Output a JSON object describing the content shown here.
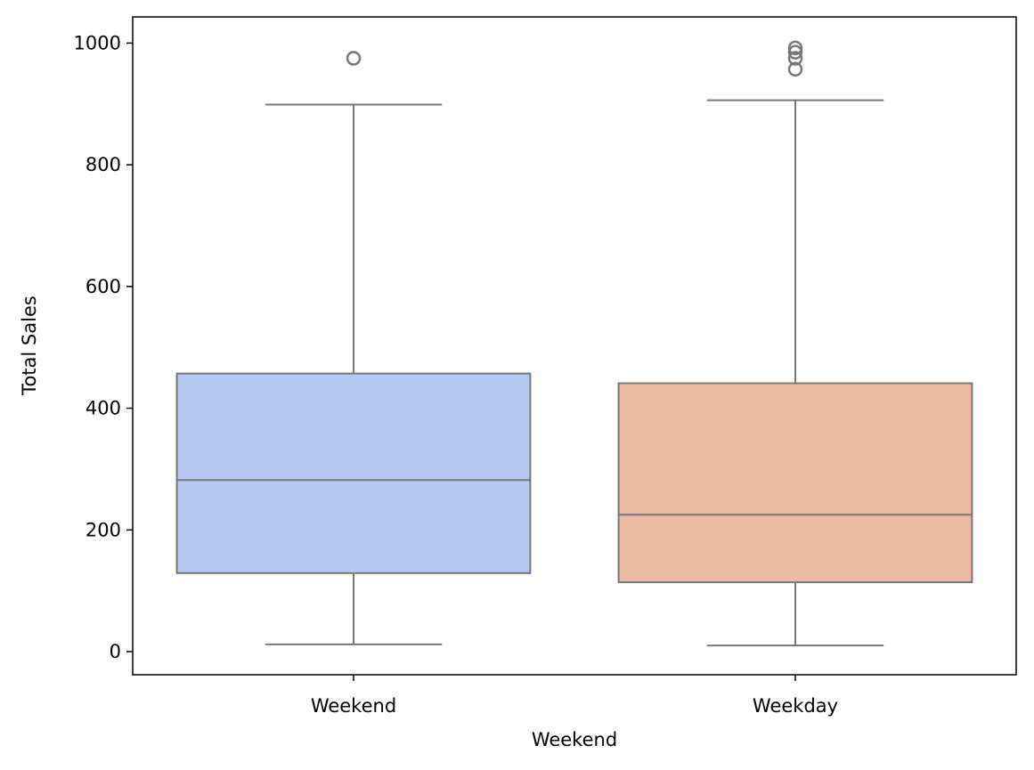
{
  "chart_data": {
    "type": "box",
    "title": "",
    "xlabel": "Weekend",
    "ylabel": "Total Sales",
    "ylim": [
      -38,
      1043
    ],
    "y_ticks": [
      0,
      200,
      400,
      600,
      800,
      1000
    ],
    "grid": false,
    "legend": "none",
    "categories": [
      "Weekend",
      "Weekday"
    ],
    "series": [
      {
        "category": "Weekend",
        "whisker_low": 12,
        "q1": 129,
        "median": 282,
        "q3": 457,
        "whisker_high": 899,
        "outliers": [
          975
        ],
        "color": "#b5c9f2"
      },
      {
        "category": "Weekday",
        "whisker_low": 10,
        "q1": 114,
        "median": 225,
        "q3": 441,
        "whisker_high": 906,
        "outliers": [
          957,
          975,
          985,
          992
        ],
        "color": "#ecbba6"
      }
    ],
    "line_color": "#777777"
  }
}
